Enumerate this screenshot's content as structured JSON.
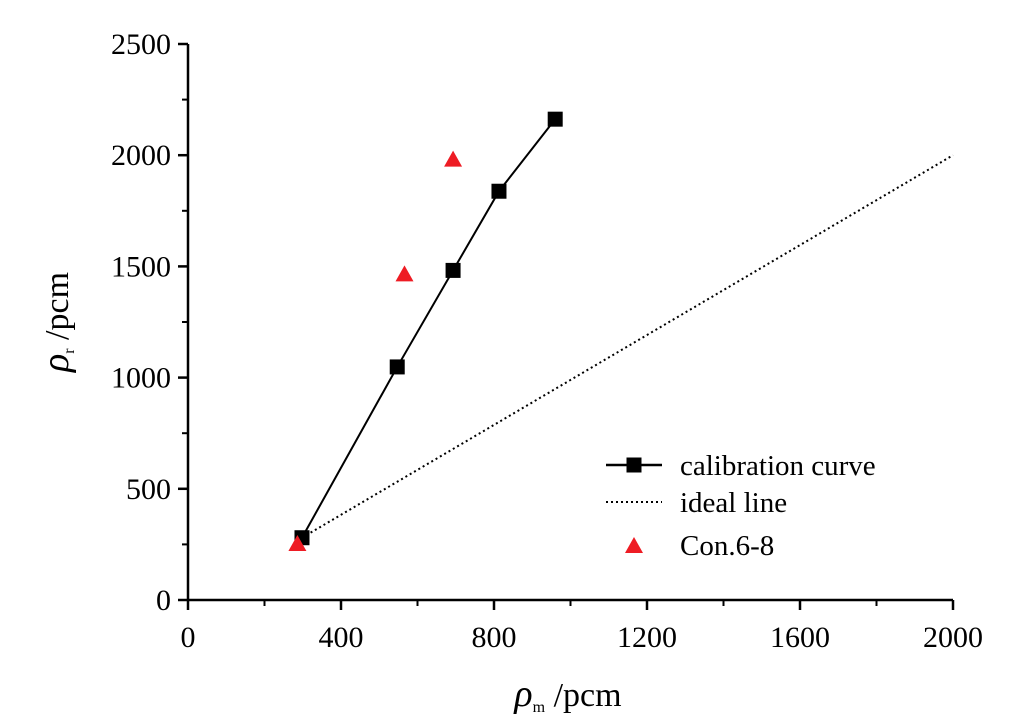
{
  "chart_data": {
    "type": "line",
    "xlabel": {
      "symbol": "ρ",
      "subscript": "m",
      "unit": " /pcm"
    },
    "ylabel": {
      "symbol": "ρ",
      "subscript": "r",
      "unit": " /pcm"
    },
    "xlim": [
      0,
      2000
    ],
    "ylim": [
      0,
      2500
    ],
    "x_ticks": [
      0,
      400,
      800,
      1200,
      1600,
      2000
    ],
    "x_tick_labels": [
      "0",
      "400",
      "800",
      "1200",
      "1600",
      "2000"
    ],
    "x_minor_ticks": [
      200,
      600,
      1000,
      1400,
      1800
    ],
    "y_ticks": [
      0,
      500,
      1000,
      1500,
      2000,
      2500
    ],
    "y_tick_labels": [
      "0",
      "500",
      "1000",
      "1500",
      "2000",
      "2500"
    ],
    "y_minor_ticks": [
      250,
      750,
      1250,
      1750,
      2250
    ],
    "grid": false,
    "legend_position": "bottom-right",
    "series": [
      {
        "name": "calibration curve",
        "style": "line-square",
        "color": "#000000",
        "x": [
          298,
          547,
          693,
          813,
          960
        ],
        "y": [
          280,
          1048,
          1482,
          1838,
          2162
        ]
      },
      {
        "name": "ideal line",
        "style": "dotted",
        "color": "#000000",
        "x": [
          298,
          2000
        ],
        "y": [
          280,
          2000
        ]
      },
      {
        "name": "Con.6-8",
        "style": "triangle",
        "color": "#ee1c24",
        "x": [
          286,
          566,
          693
        ],
        "y": [
          252,
          1464,
          1980
        ]
      }
    ]
  }
}
